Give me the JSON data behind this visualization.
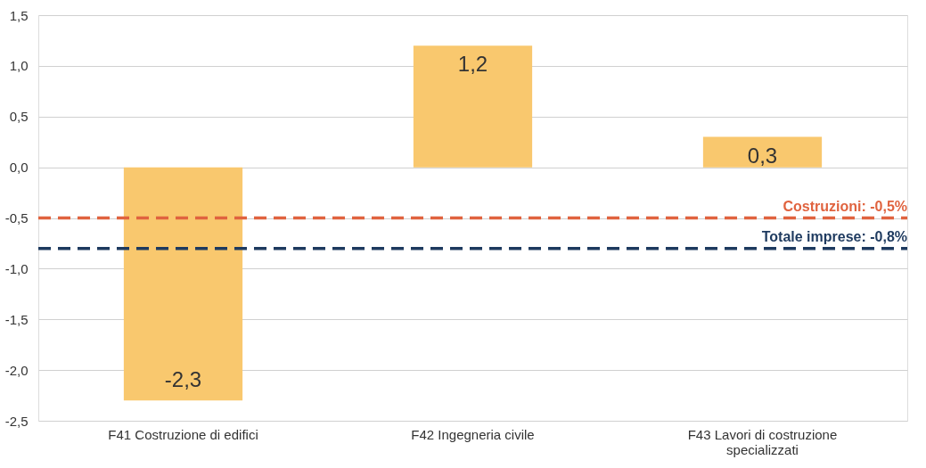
{
  "chart_data": {
    "type": "bar",
    "categories": [
      "F41 Costruzione di edifici",
      "F42 Ingegneria civile",
      "F43 Lavori di costruzione specializzati"
    ],
    "values": [
      -2.3,
      1.2,
      0.3
    ],
    "color": "#f9c86e",
    "value_labels": [
      "-2,3",
      "1,2",
      "0,3"
    ],
    "ylim": [
      -2.5,
      1.5
    ],
    "yticks": [
      {
        "value": -2.5,
        "label": "-2,5"
      },
      {
        "value": -2.0,
        "label": "-2,0"
      },
      {
        "value": -1.5,
        "label": "-1,5"
      },
      {
        "value": -1.0,
        "label": "-1,0"
      },
      {
        "value": -0.5,
        "label": "-0,5"
      },
      {
        "value": 0.0,
        "label": "0,0"
      },
      {
        "value": 0.5,
        "label": "0,5"
      },
      {
        "value": 1.0,
        "label": "1,0"
      },
      {
        "value": 1.5,
        "label": "1,5"
      }
    ],
    "grid": "y",
    "ref_lines": [
      {
        "axis": "y",
        "value": -0.5,
        "label": "Costruzioni: -0,5%",
        "color": "#e0633f",
        "line_style": "dashed"
      },
      {
        "axis": "y",
        "value": -0.8,
        "label": "Totale imprese: -0,8%",
        "color": "#1e3a5f",
        "line_style": "dashed"
      }
    ]
  }
}
